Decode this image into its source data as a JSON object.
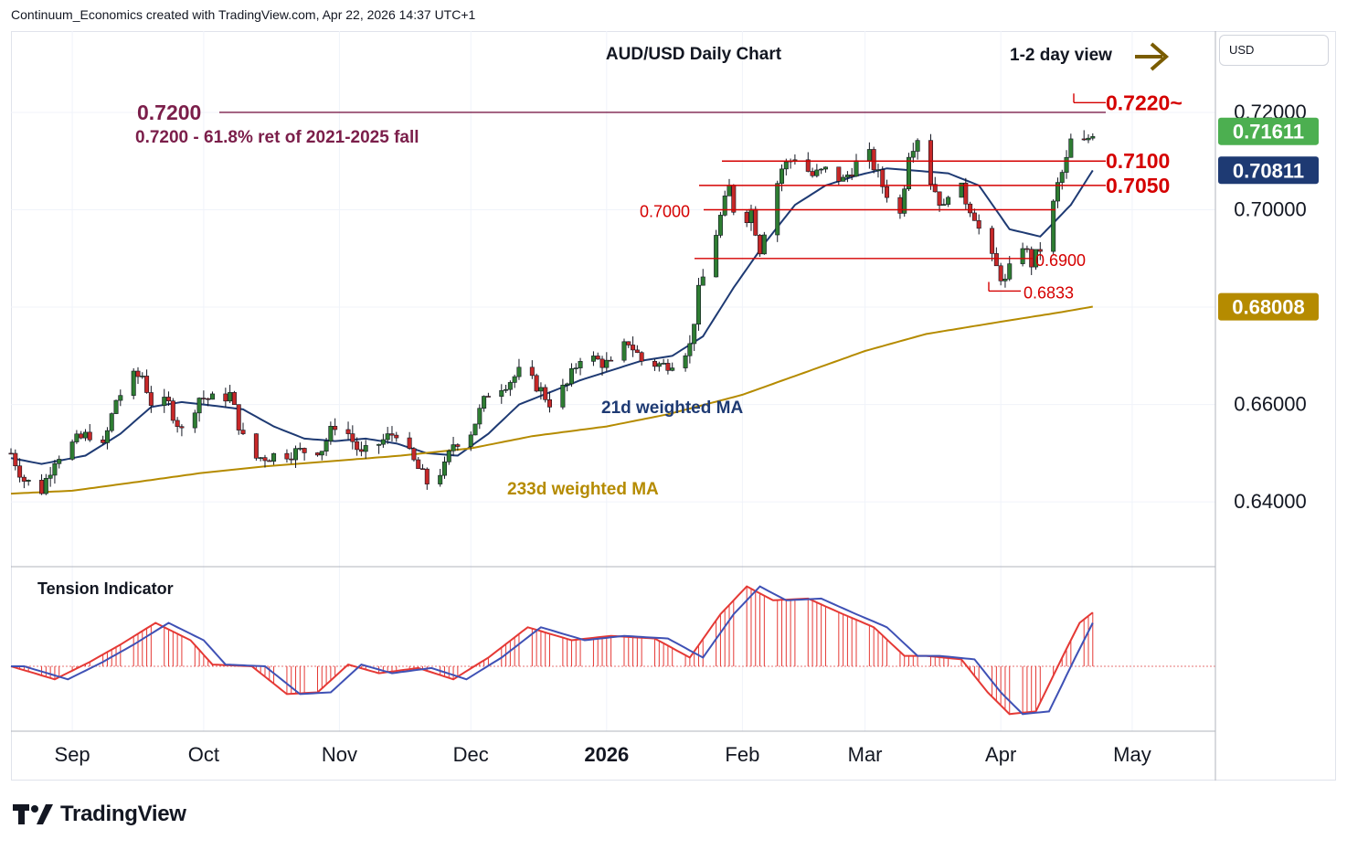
{
  "header": {
    "credit": "Continuum_Economics created with TradingView.com, Apr 22, 2026 14:37 UTC+1"
  },
  "currency": "USD",
  "brand": {
    "name": "TradingView"
  },
  "chart_data": {
    "type": "candlestick",
    "title": "AUD/USD Daily Chart",
    "view_label": "1-2 day view",
    "ylim": [
      0.6267,
      0.7367
    ],
    "y_ticks": [
      "0.72000",
      "0.70000",
      "0.66000",
      "0.64000"
    ],
    "y_tick_values": [
      0.72,
      0.7,
      0.66,
      0.64
    ],
    "x_tick_labels": [
      "Sep",
      "Oct",
      "Nov",
      "Dec",
      "2026",
      "Feb",
      "Mar",
      "Apr",
      "May"
    ],
    "x_tick_dates": [
      "2025-09-01",
      "2025-10-01",
      "2025-11-01",
      "2025-12-01",
      "2026-01-01",
      "2026-02-01",
      "2026-03-01",
      "2026-04-01",
      "2026-05-01"
    ],
    "x_range": [
      "2025-08-18",
      "2026-05-20"
    ],
    "price_badges": [
      {
        "value": "0.71611",
        "bg": "#4caf50",
        "fg": "#ffffff"
      },
      {
        "value": "0.70811",
        "bg": "#1e3a73",
        "fg": "#ffffff"
      },
      {
        "value": "0.68008",
        "bg": "#b58b00",
        "fg": "#ffffff"
      }
    ],
    "levels": [
      {
        "label": "0.7220~",
        "value": 0.722
      },
      {
        "label": "0.7200",
        "value": 0.72
      },
      {
        "label": "0.7100",
        "value": 0.71
      },
      {
        "label": "0.7050",
        "value": 0.705
      },
      {
        "label": "0.7000",
        "value": 0.7
      },
      {
        "label": "0.6900",
        "value": 0.69
      },
      {
        "label": "0.6833",
        "value": 0.6833
      }
    ],
    "annotations": [
      "0.7200 - 61.8% ret of 2021-2025 fall",
      "21d weighted MA",
      "233d weighted MA"
    ],
    "close_keypoints": [
      [
        "2025-08-18",
        0.65
      ],
      [
        "2025-08-21",
        0.6445
      ],
      [
        "2025-08-25",
        0.6425
      ],
      [
        "2025-08-28",
        0.649
      ],
      [
        "2025-09-02",
        0.6525
      ],
      [
        "2025-09-05",
        0.654
      ],
      [
        "2025-09-08",
        0.651
      ],
      [
        "2025-09-11",
        0.661
      ],
      [
        "2025-09-15",
        0.6655
      ],
      [
        "2025-09-17",
        0.666
      ],
      [
        "2025-09-19",
        0.6605
      ],
      [
        "2025-09-23",
        0.66
      ],
      [
        "2025-09-26",
        0.6545
      ],
      [
        "2025-09-30",
        0.6615
      ],
      [
        "2025-10-03",
        0.661
      ],
      [
        "2025-10-07",
        0.662
      ],
      [
        "2025-10-10",
        0.653
      ],
      [
        "2025-10-13",
        0.649
      ],
      [
        "2025-10-20",
        0.65
      ],
      [
        "2025-10-24",
        0.6505
      ],
      [
        "2025-10-28",
        0.651
      ],
      [
        "2025-10-31",
        0.656
      ],
      [
        "2025-11-03",
        0.654
      ],
      [
        "2025-11-06",
        0.6495
      ],
      [
        "2025-11-10",
        0.652
      ],
      [
        "2025-11-14",
        0.6545
      ],
      [
        "2025-11-17",
        0.6495
      ],
      [
        "2025-11-21",
        0.644
      ],
      [
        "2025-11-25",
        0.647
      ],
      [
        "2025-11-27",
        0.652
      ],
      [
        "2025-12-01",
        0.6545
      ],
      [
        "2025-12-05",
        0.6625
      ],
      [
        "2025-12-10",
        0.665
      ],
      [
        "2025-12-12",
        0.6665
      ],
      [
        "2025-12-16",
        0.664
      ],
      [
        "2025-12-19",
        0.6605
      ],
      [
        "2025-12-23",
        0.664
      ],
      [
        "2025-12-26",
        0.67
      ],
      [
        "2025-12-30",
        0.669
      ],
      [
        "2026-01-02",
        0.668
      ],
      [
        "2026-01-06",
        0.673
      ],
      [
        "2026-01-09",
        0.669
      ],
      [
        "2026-01-14",
        0.668
      ],
      [
        "2026-01-16",
        0.669
      ],
      [
        "2026-01-20",
        0.672
      ],
      [
        "2026-01-22",
        0.683
      ],
      [
        "2026-01-24",
        0.689
      ],
      [
        "2026-01-27",
        0.6985
      ],
      [
        "2026-01-29",
        0.7045
      ],
      [
        "2026-01-31",
        0.696
      ],
      [
        "2026-02-03",
        0.7
      ],
      [
        "2026-02-05",
        0.692
      ],
      [
        "2026-02-07",
        0.7
      ],
      [
        "2026-02-10",
        0.7085
      ],
      [
        "2026-02-13",
        0.711
      ],
      [
        "2026-02-17",
        0.707
      ],
      [
        "2026-02-20",
        0.708
      ],
      [
        "2026-02-24",
        0.706
      ],
      [
        "2026-02-27",
        0.7095
      ],
      [
        "2026-03-02",
        0.711
      ],
      [
        "2026-03-05",
        0.705
      ],
      [
        "2026-03-09",
        0.699
      ],
      [
        "2026-03-11",
        0.712
      ],
      [
        "2026-03-13",
        0.715
      ],
      [
        "2026-03-16",
        0.706
      ],
      [
        "2026-03-19",
        0.7
      ],
      [
        "2026-03-21",
        0.708
      ],
      [
        "2026-03-24",
        0.702
      ],
      [
        "2026-03-26",
        0.699
      ],
      [
        "2026-03-28",
        0.693
      ],
      [
        "2026-03-31",
        0.688
      ],
      [
        "2026-04-02",
        0.685
      ],
      [
        "2026-04-04",
        0.69
      ],
      [
        "2026-04-06",
        0.693
      ],
      [
        "2026-04-08",
        0.689
      ],
      [
        "2026-04-10",
        0.692
      ],
      [
        "2026-04-12",
        0.697
      ],
      [
        "2026-04-14",
        0.705
      ],
      [
        "2026-04-16",
        0.71
      ],
      [
        "2026-04-18",
        0.718
      ],
      [
        "2026-04-20",
        0.7135
      ],
      [
        "2026-04-22",
        0.7161
      ]
    ],
    "moving_averages": [
      {
        "name": "21d weighted MA",
        "color": "#1e3a73",
        "points": [
          [
            "2025-08-18",
            0.649
          ],
          [
            "2025-08-25",
            0.6478
          ],
          [
            "2025-09-04",
            0.6495
          ],
          [
            "2025-09-12",
            0.654
          ],
          [
            "2025-09-19",
            0.6595
          ],
          [
            "2025-09-26",
            0.6605
          ],
          [
            "2025-10-03",
            0.6598
          ],
          [
            "2025-10-10",
            0.659
          ],
          [
            "2025-10-17",
            0.6555
          ],
          [
            "2025-10-24",
            0.653
          ],
          [
            "2025-10-31",
            0.6525
          ],
          [
            "2025-11-07",
            0.653
          ],
          [
            "2025-11-14",
            0.652
          ],
          [
            "2025-11-21",
            0.65
          ],
          [
            "2025-11-28",
            0.6495
          ],
          [
            "2025-12-05",
            0.654
          ],
          [
            "2025-12-12",
            0.66
          ],
          [
            "2025-12-19",
            0.6625
          ],
          [
            "2025-12-26",
            0.665
          ],
          [
            "2026-01-02",
            0.667
          ],
          [
            "2026-01-09",
            0.669
          ],
          [
            "2026-01-16",
            0.67
          ],
          [
            "2026-01-23",
            0.674
          ],
          [
            "2026-01-30",
            0.684
          ],
          [
            "2026-02-06",
            0.693
          ],
          [
            "2026-02-13",
            0.701
          ],
          [
            "2026-02-20",
            0.705
          ],
          [
            "2026-02-27",
            0.707
          ],
          [
            "2026-03-06",
            0.7085
          ],
          [
            "2026-03-13",
            0.708
          ],
          [
            "2026-03-20",
            0.7075
          ],
          [
            "2026-03-27",
            0.705
          ],
          [
            "2026-04-03",
            0.696
          ],
          [
            "2026-04-10",
            0.6945
          ],
          [
            "2026-04-17",
            0.701
          ],
          [
            "2026-04-22",
            0.7081
          ]
        ]
      },
      {
        "name": "233d weighted MA",
        "color": "#b58b00",
        "points": [
          [
            "2025-08-18",
            0.6417
          ],
          [
            "2025-09-01",
            0.6423
          ],
          [
            "2025-09-15",
            0.644
          ],
          [
            "2025-10-01",
            0.646
          ],
          [
            "2025-10-15",
            0.6473
          ],
          [
            "2025-11-01",
            0.6485
          ],
          [
            "2025-11-15",
            0.6495
          ],
          [
            "2025-12-01",
            0.651
          ],
          [
            "2025-12-15",
            0.6535
          ],
          [
            "2026-01-01",
            0.6555
          ],
          [
            "2026-01-15",
            0.658
          ],
          [
            "2026-02-01",
            0.662
          ],
          [
            "2026-02-15",
            0.6665
          ],
          [
            "2026-03-01",
            0.671
          ],
          [
            "2026-03-15",
            0.6745
          ],
          [
            "2026-04-01",
            0.677
          ],
          [
            "2026-04-15",
            0.679
          ],
          [
            "2026-04-22",
            0.6801
          ]
        ]
      }
    ],
    "indicator": {
      "name": "Tension Indicator",
      "keypoints": [
        [
          "2025-08-18",
          0.0
        ],
        [
          "2025-08-28",
          -0.15
        ],
        [
          "2025-09-05",
          0.05
        ],
        [
          "2025-09-12",
          0.25
        ],
        [
          "2025-09-20",
          0.5
        ],
        [
          "2025-09-28",
          0.3
        ],
        [
          "2025-10-03",
          0.02
        ],
        [
          "2025-10-12",
          0.0
        ],
        [
          "2025-10-20",
          -0.32
        ],
        [
          "2025-10-27",
          -0.3
        ],
        [
          "2025-11-03",
          0.02
        ],
        [
          "2025-11-10",
          -0.08
        ],
        [
          "2025-11-19",
          -0.02
        ],
        [
          "2025-11-27",
          -0.15
        ],
        [
          "2025-12-05",
          0.1
        ],
        [
          "2025-12-14",
          0.45
        ],
        [
          "2025-12-24",
          0.3
        ],
        [
          "2026-01-02",
          0.35
        ],
        [
          "2026-01-12",
          0.32
        ],
        [
          "2026-01-20",
          0.1
        ],
        [
          "2026-01-27",
          0.6
        ],
        [
          "2026-02-02",
          0.92
        ],
        [
          "2026-02-08",
          0.76
        ],
        [
          "2026-02-16",
          0.78
        ],
        [
          "2026-02-24",
          0.6
        ],
        [
          "2026-03-03",
          0.45
        ],
        [
          "2026-03-10",
          0.12
        ],
        [
          "2026-03-15",
          0.12
        ],
        [
          "2026-03-23",
          0.08
        ],
        [
          "2026-03-29",
          -0.3
        ],
        [
          "2026-04-03",
          -0.55
        ],
        [
          "2026-04-09",
          -0.52
        ],
        [
          "2026-04-15",
          0.1
        ],
        [
          "2026-04-19",
          0.5
        ],
        [
          "2026-04-22",
          0.62
        ]
      ]
    }
  }
}
